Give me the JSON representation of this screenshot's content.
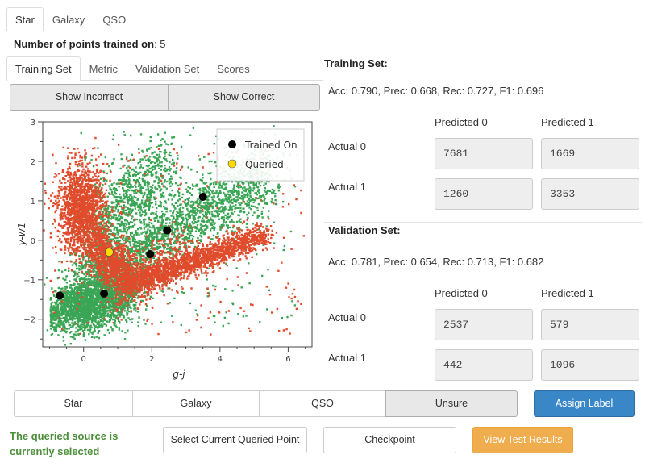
{
  "top_tabs": [
    {
      "label": "Star",
      "active": true
    },
    {
      "label": "Galaxy",
      "active": false
    },
    {
      "label": "QSO",
      "active": false
    }
  ],
  "points_trained": {
    "label": "Number of points trained on",
    "value": ": 5"
  },
  "sub_tabs": [
    {
      "label": "Training Set",
      "active": true
    },
    {
      "label": "Metric",
      "active": false
    },
    {
      "label": "Validation Set",
      "active": false
    },
    {
      "label": "Scores",
      "active": false
    }
  ],
  "filter_buttons": {
    "incorrect": "Show Incorrect",
    "correct": "Show Correct"
  },
  "training": {
    "title": "Training Set:",
    "metrics": "Acc: 0.790, Prec: 0.668, Rec: 0.727, F1: 0.696",
    "pred0": "Predicted 0",
    "pred1": "Predicted 1",
    "actual0": "Actual 0",
    "actual1": "Actual 1",
    "c00": "7681",
    "c01": "1669",
    "c10": "1260",
    "c11": "3353"
  },
  "validation": {
    "title": "Validation Set:",
    "metrics": "Acc: 0.781, Prec: 0.654, Rec: 0.713, F1: 0.682",
    "pred0": "Predicted 0",
    "pred1": "Predicted 1",
    "actual0": "Actual 0",
    "actual1": "Actual 1",
    "c00": "2537",
    "c01": "579",
    "c10": "442",
    "c11": "1096"
  },
  "label_buttons": [
    "Star",
    "Galaxy",
    "QSO",
    "Unsure"
  ],
  "assign_button": "Assign Label",
  "status_text": "The queried source is currently selected",
  "select_button": "Select Current Queried Point",
  "checkpoint_button": "Checkpoint",
  "view_results_button": "View Test Results",
  "colors": {
    "correct": "#3aa655",
    "incorrect": "#e04b2c",
    "trained": "#000000",
    "queried": "#ffdd00",
    "assign": "#3a87c8",
    "view_results": "#f0ad4e",
    "status": "#4c8e3a"
  },
  "chart_data": {
    "type": "scatter",
    "xlabel": "g-j",
    "ylabel": "y-w1",
    "xlim": [
      -1.2,
      6.7
    ],
    "ylim": [
      -2.7,
      3.0
    ],
    "xticks": [
      0,
      2,
      4,
      6
    ],
    "yticks": [
      3,
      2,
      1,
      0,
      -1,
      -2
    ],
    "legend": [
      {
        "name": "Trained On",
        "color": "#000000"
      },
      {
        "name": "Queried",
        "color": "#ffdd00"
      }
    ],
    "legend_position": "top-right",
    "trained_points": [
      [
        -0.7,
        -1.4
      ],
      [
        0.6,
        -1.35
      ],
      [
        1.95,
        -0.35
      ],
      [
        2.45,
        0.25
      ],
      [
        3.5,
        1.1
      ]
    ],
    "queried_point": [
      0.75,
      -0.3
    ]
  }
}
